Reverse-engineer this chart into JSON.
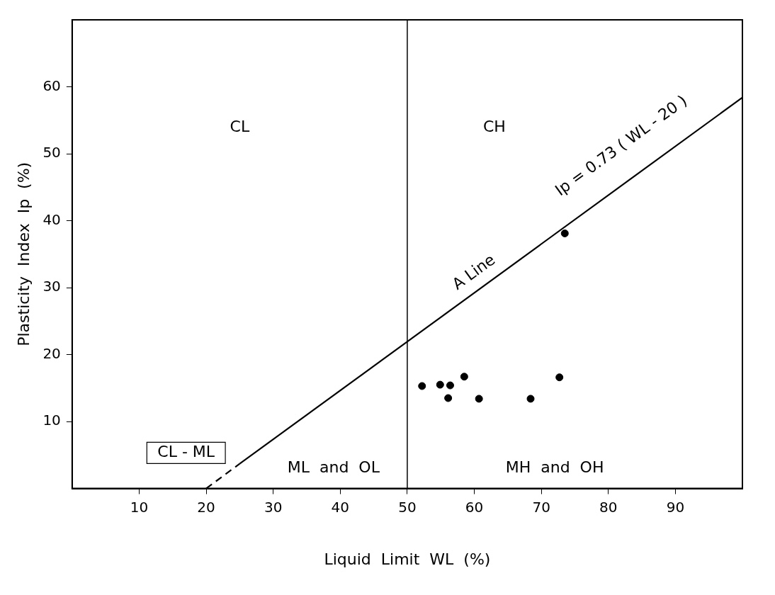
{
  "chart_data": {
    "type": "scatter",
    "xlabel": "Liquid  Limit  WL  (%)",
    "ylabel": "Plasticity  Index  Ip  (%)",
    "xlim": [
      0,
      100
    ],
    "ylim": [
      0,
      70
    ],
    "xticks": [
      10,
      20,
      30,
      40,
      50,
      60,
      70,
      80,
      90
    ],
    "yticks": [
      10,
      20,
      30,
      40,
      50,
      60
    ],
    "grid": false,
    "legend": false,
    "marker": "circle",
    "series": [
      {
        "color": "#000000",
        "x": [
          52.2,
          54.9,
          56.4,
          56.1,
          58.5,
          60.7,
          68.4,
          72.7,
          73.5
        ],
        "values": [
          15.3,
          15.5,
          15.4,
          13.5,
          16.7,
          13.4,
          13.4,
          16.6,
          38.1
        ]
      },
      {
        "type": "line",
        "color": "#000000",
        "line_style": "dashed",
        "marker": "none",
        "x": [
          20,
          25
        ],
        "values": [
          0,
          3.7
        ]
      },
      {
        "type": "line",
        "color": "#000000",
        "line_style": "solid",
        "marker": "none",
        "x": [
          25,
          100
        ],
        "values": [
          3.7,
          58.4
        ]
      }
    ],
    "ref_lines": [
      {
        "axis": "x",
        "value": 50,
        "color": "#000000",
        "line_style": "solid"
      }
    ],
    "annotations": [
      "CL",
      "CH",
      "A Line",
      "Ip = 0.73 ( WL - 20 )",
      "CL - ML",
      "ML  and  OL",
      "MH  and  OH"
    ]
  }
}
